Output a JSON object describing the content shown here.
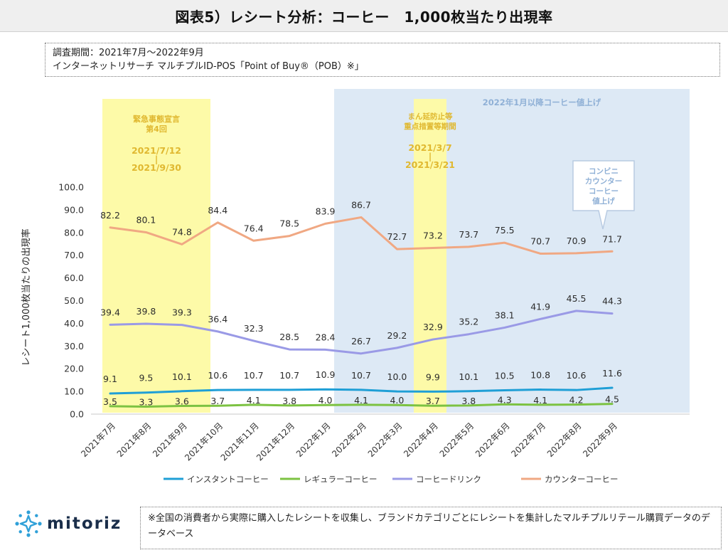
{
  "header": {
    "title": "図表5）レシート分析：コーヒー　1,000枚当たり出現率"
  },
  "info": {
    "line1": "調査期間：2021年7月～2022年9月",
    "line2": " インターネットリサーチ マルチプルID-POS「Point of Buy®（POB）※」"
  },
  "footer": {
    "note": "※全国の消費者から実際に購入したレシートを収集し、ブランドカテゴリごとにレシートを集計したマルチプルリテール購買データのデータベース"
  },
  "logo": {
    "name": "mitoriz",
    "icon": "mitoriz-logo-icon"
  },
  "chart_data": {
    "type": "line",
    "ylabel": "レシート1,000枚当たりの出現率",
    "xlabel": "",
    "ylim": [
      0,
      100
    ],
    "yticks": [
      "0.0",
      "10.0",
      "20.0",
      "30.0",
      "40.0",
      "50.0",
      "60.0",
      "70.0",
      "80.0",
      "90.0",
      "100.0"
    ],
    "grid": false,
    "legend_position": "bottom",
    "categories": [
      "2021年7月",
      "2021年8月",
      "2021年9月",
      "2021年10月",
      "2021年11月",
      "2021年12月",
      "2022年1月",
      "2022年2月",
      "2022年3月",
      "2022年4月",
      "2022年5月",
      "2022年6月",
      "2022年7月",
      "2022年8月",
      "2022年9月"
    ],
    "series": [
      {
        "name": "インスタントコーヒー",
        "color": "#1f9fd6",
        "values": [
          9.1,
          9.5,
          10.1,
          10.6,
          10.7,
          10.7,
          10.9,
          10.7,
          10.0,
          9.9,
          10.1,
          10.5,
          10.8,
          10.6,
          11.6
        ]
      },
      {
        "name": "レギュラーコーヒー",
        "color": "#7cc242",
        "values": [
          3.5,
          3.3,
          3.6,
          3.7,
          4.1,
          3.8,
          4.0,
          4.1,
          4.0,
          3.7,
          3.8,
          4.3,
          4.1,
          4.2,
          4.5
        ]
      },
      {
        "name": "コーヒードリンク",
        "color": "#9a9ae6",
        "values": [
          39.4,
          39.8,
          39.3,
          36.4,
          32.3,
          28.5,
          28.4,
          26.7,
          29.2,
          32.9,
          35.2,
          38.1,
          41.9,
          45.5,
          44.3
        ]
      },
      {
        "name": "カウンターコーヒー",
        "color": "#f0a883",
        "values": [
          82.2,
          80.1,
          74.8,
          84.4,
          76.4,
          78.5,
          83.9,
          86.7,
          72.7,
          73.2,
          73.7,
          75.5,
          70.7,
          70.9,
          71.7
        ]
      }
    ],
    "annotations": {
      "emergency_label": "緊急事態宣言\n第4回",
      "emergency_dates": [
        "2021/7/12",
        "|",
        "2021/9/30"
      ],
      "semi_label": "まん延防止等\n重点措置等期間",
      "semi_dates": [
        "2021/3/7",
        "|",
        "2021/3/21"
      ],
      "price_up_label": "2022年1月以降コーヒー値上げ",
      "callout": "コンビニ\nカウンター\nコーヒー\n値上げ"
    },
    "colors": {
      "emergency_bg": "#fdfaa8",
      "emergency_text": "#e0b830",
      "price_bg": "#dde9f5",
      "price_text": "#8fb0d6"
    }
  }
}
